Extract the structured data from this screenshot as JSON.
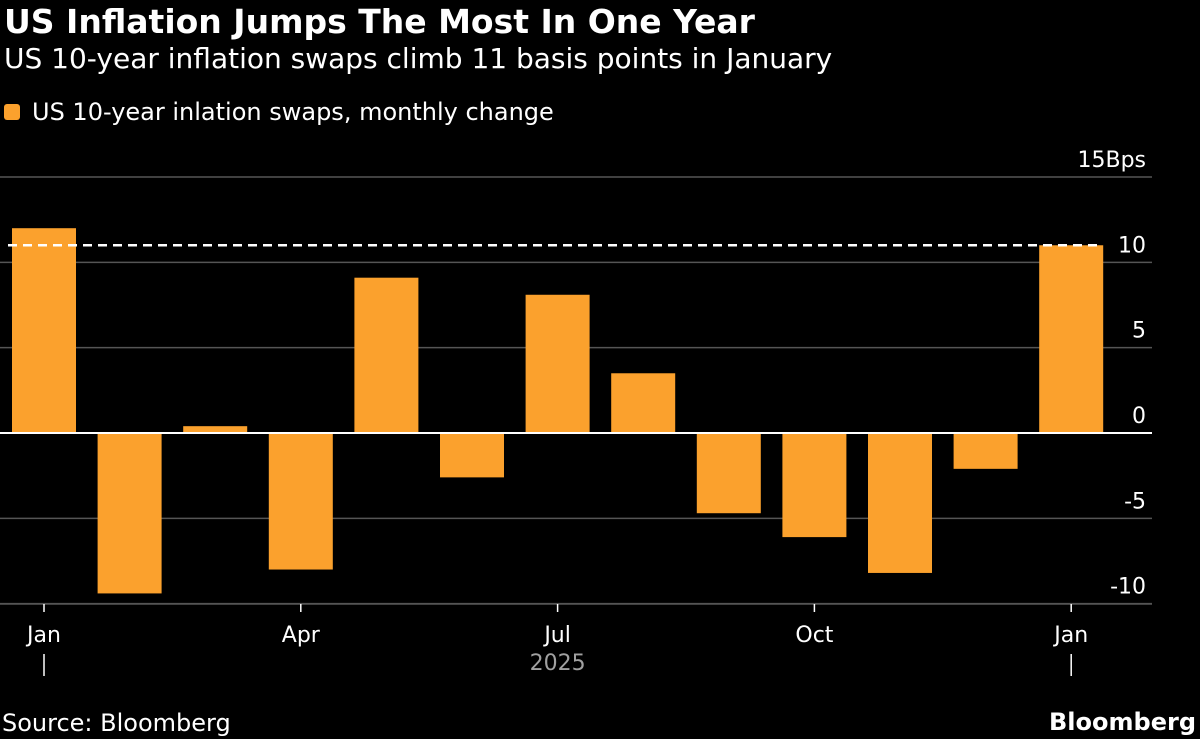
{
  "header": {
    "title": "US Inflation Jumps The Most In One Year",
    "subtitle": "US 10-year inflation swaps climb 11 basis points in January"
  },
  "footer": {
    "source": "Source: Bloomberg",
    "brand": "Bloomberg"
  },
  "colors": {
    "bar": "#FBA12D",
    "background": "#000000",
    "grid": "#555555",
    "reference_line": "#ffffff"
  },
  "chart_data": {
    "type": "bar",
    "title": "US Inflation Jumps The Most In One Year",
    "subtitle": "US 10-year inflation swaps climb 11 basis points in January",
    "legend": [
      "US 10-year inlation swaps, monthly change"
    ],
    "categories": [
      "Jan 2025",
      "Feb 2025",
      "Mar 2025",
      "Apr 2025",
      "May 2025",
      "Jun 2025",
      "Jul 2025",
      "Aug 2025",
      "Sep 2025",
      "Oct 2025",
      "Nov 2025",
      "Dec 2025",
      "Jan 2026"
    ],
    "series": [
      {
        "name": "US 10-year inlation swaps, monthly change",
        "values": [
          12,
          -9.4,
          0.4,
          -8,
          9.1,
          -2.6,
          8.1,
          3.5,
          -4.7,
          -6.1,
          -8.2,
          -2.1,
          11
        ]
      }
    ],
    "reference_line": {
      "value": 11,
      "style": "dashed"
    },
    "ylim": [
      -10,
      15
    ],
    "yticks": [
      -10,
      -5,
      0,
      5,
      10,
      15
    ],
    "ytick_labels": [
      "-10",
      "-5",
      "0",
      "5",
      "10",
      "15Bps"
    ],
    "xtick_labels": [
      {
        "index": 0,
        "label": "Jan"
      },
      {
        "index": 3,
        "label": "Apr"
      },
      {
        "index": 6,
        "label": "Jul"
      },
      {
        "index": 9,
        "label": "Oct"
      },
      {
        "index": 12,
        "label": "Jan"
      }
    ],
    "year_label": "2025",
    "xlabel": "",
    "ylabel": "Bps"
  }
}
